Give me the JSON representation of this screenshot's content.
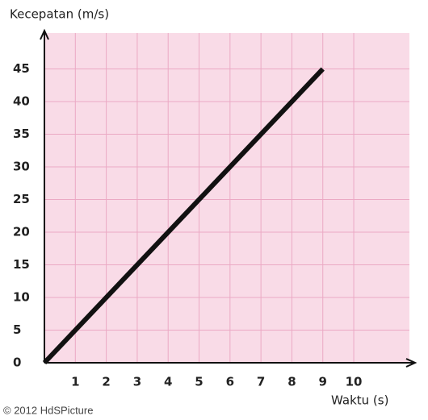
{
  "chart_data": {
    "type": "line",
    "y_label": "Kecepatan (m/s)",
    "x_label": "Waktu (s)",
    "watermark": "© 2012 HdSPicture",
    "x": [
      0,
      9
    ],
    "series": [
      {
        "name": null,
        "color": "#111111",
        "values": [
          0,
          45
        ]
      }
    ],
    "xlim": [
      0,
      11.8
    ],
    "ylim": [
      0,
      50.5
    ],
    "xticks": [
      1,
      2,
      3,
      4,
      5,
      6,
      7,
      8,
      9,
      10
    ],
    "yticks": [
      0,
      5,
      10,
      15,
      20,
      25,
      30,
      35,
      40,
      45
    ],
    "grid": true,
    "background": "#f9dbe7",
    "grid_color": "#eba9c4"
  }
}
